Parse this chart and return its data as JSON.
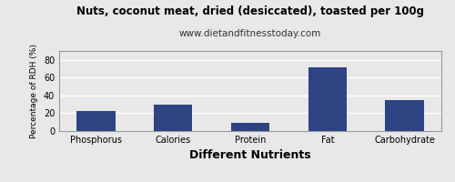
{
  "title": "Nuts, coconut meat, dried (desiccated), toasted per 100g",
  "subtitle": "www.dietandfitnesstoday.com",
  "xlabel": "Different Nutrients",
  "ylabel": "Percentage of RDH (%)",
  "categories": [
    "Phosphorus",
    "Calories",
    "Protein",
    "Fat",
    "Carbohydrate"
  ],
  "values": [
    22,
    30,
    9,
    72,
    35
  ],
  "bar_color": "#2e4482",
  "ylim": [
    0,
    90
  ],
  "yticks": [
    0,
    20,
    40,
    60,
    80
  ],
  "background_color": "#e8e8e8",
  "plot_background_color": "#e8e8e8",
  "title_fontsize": 8.5,
  "subtitle_fontsize": 7.5,
  "xlabel_fontsize": 9,
  "ylabel_fontsize": 6.5,
  "tick_fontsize": 7,
  "grid_color": "#ffffff"
}
